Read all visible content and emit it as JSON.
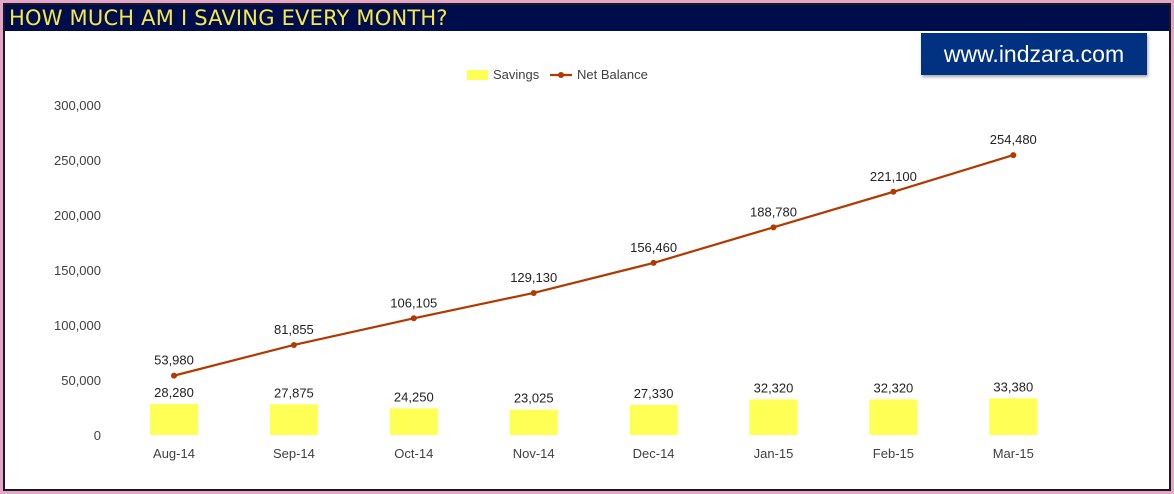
{
  "title": "HOW MUCH AM I SAVING EVERY MONTH?",
  "badge": "www.indzara.com",
  "colors": {
    "title_bg": "#000d4d",
    "title_text": "#f5e94a",
    "savings": "#ffff55",
    "net_balance": "#b03a00",
    "badge_bg": "#013282"
  },
  "chart_data": {
    "type": "bar+line",
    "categories": [
      "Aug-14",
      "Sep-14",
      "Oct-14",
      "Nov-14",
      "Dec-14",
      "Jan-15",
      "Feb-15",
      "Mar-15"
    ],
    "series": [
      {
        "name": "Savings",
        "type": "bar",
        "values": [
          28280,
          27875,
          24250,
          23025,
          27330,
          32320,
          32320,
          33380
        ],
        "labels": [
          "28,280",
          "27,875",
          "24,250",
          "23,025",
          "27,330",
          "32,320",
          "32,320",
          "33,380"
        ]
      },
      {
        "name": "Net Balance",
        "type": "line",
        "values": [
          53980,
          81855,
          106105,
          129130,
          156460,
          188780,
          221100,
          254480
        ],
        "labels": [
          "53,980",
          "81,855",
          "106,105",
          "129,130",
          "156,460",
          "188,780",
          "221,100",
          "254,480"
        ]
      }
    ],
    "yticks": [
      "0",
      "50,000",
      "100,000",
      "150,000",
      "200,000",
      "250,000",
      "300,000"
    ],
    "ylim": [
      0,
      300000
    ],
    "grid": false,
    "legend": "top"
  }
}
